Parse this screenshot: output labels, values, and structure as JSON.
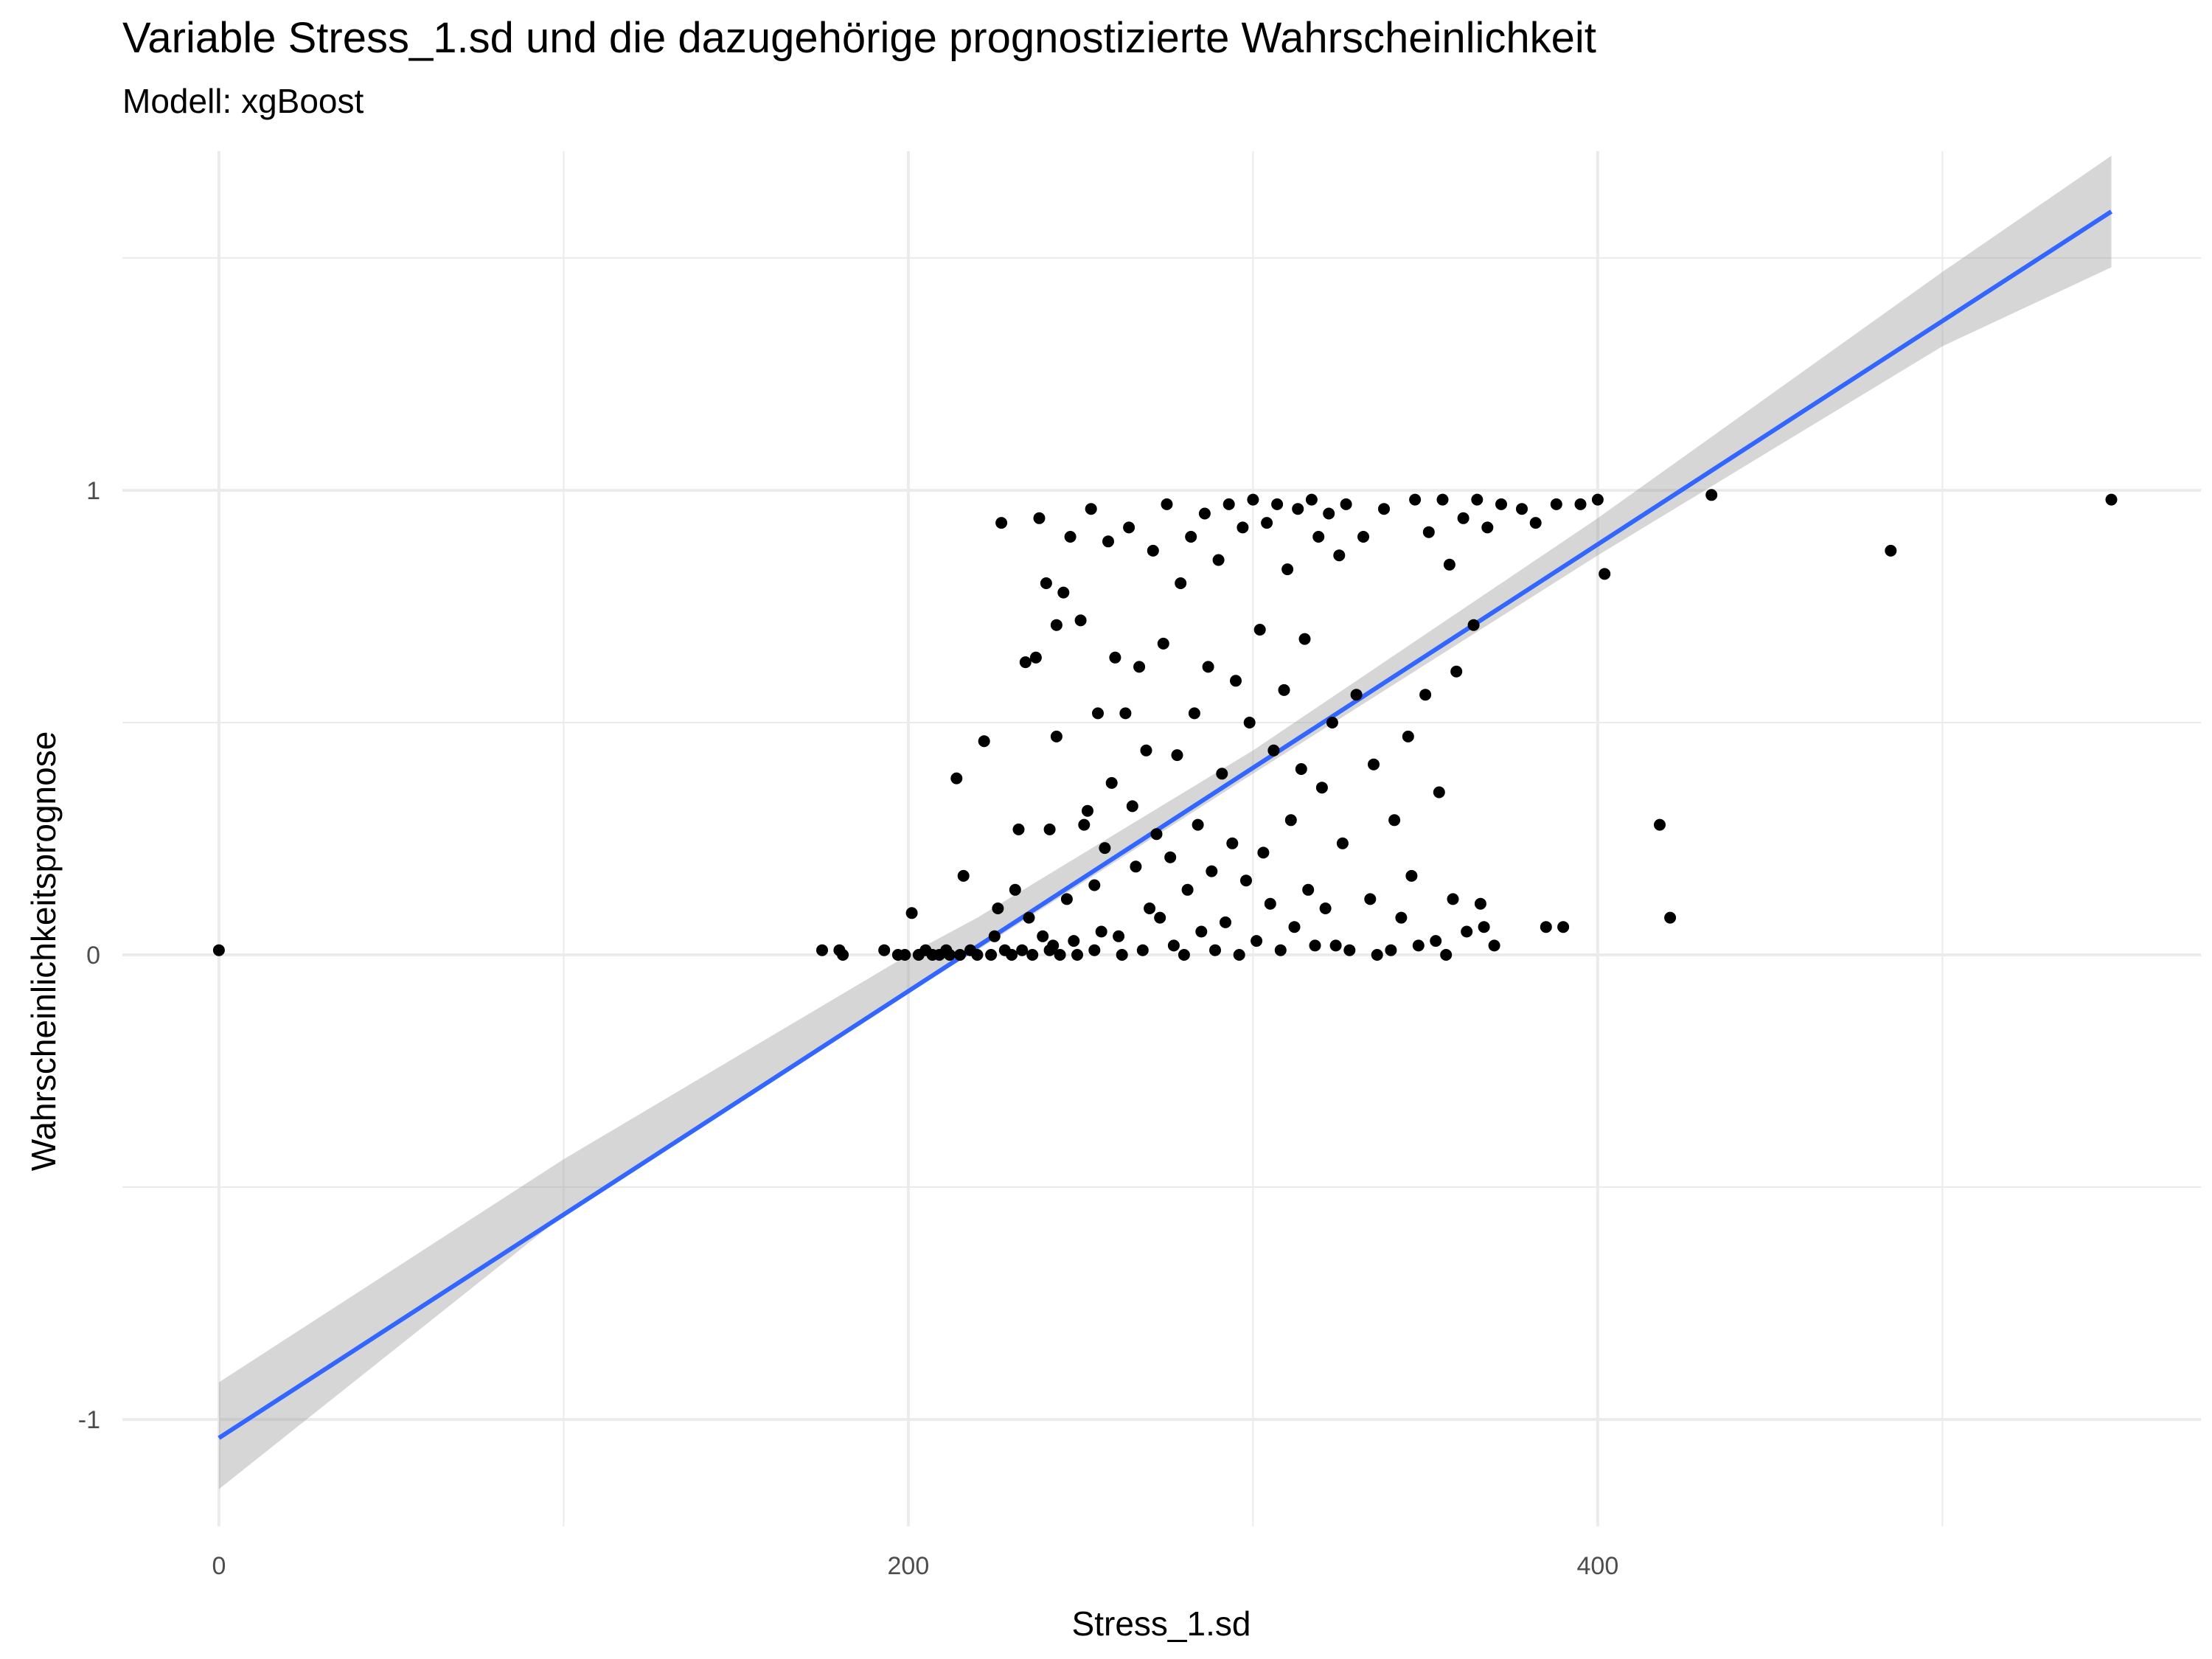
{
  "chart_data": {
    "type": "scatter",
    "title": "Variable Stress_1.sd und die dazugehörige prognostizierte Wahrscheinlichkeit",
    "subtitle": "Modell: xgBoost",
    "xlabel": "Stress_1.sd",
    "ylabel": "Wahrscheinlichkeitsprognose",
    "xlim": [
      -28,
      575
    ],
    "ylim": [
      -1.23,
      1.73
    ],
    "x_ticks": [
      0,
      200,
      400
    ],
    "y_ticks": [
      -1,
      0,
      1
    ],
    "x_tick_labels": [
      "0",
      "200",
      "400"
    ],
    "y_tick_labels": [
      "-1",
      "0",
      "1"
    ],
    "x_minor": [
      100,
      300,
      500
    ],
    "y_minor": [
      -0.5,
      0.5,
      1.5
    ],
    "grid": true,
    "colors": {
      "points": "#000000",
      "fit_line": "#3366FF",
      "ribbon": "#999999",
      "grid": "#ebebeb"
    },
    "fit_line": {
      "x": [
        0,
        549
      ],
      "y": [
        -1.04,
        1.6
      ]
    },
    "confidence_band": {
      "x": [
        0,
        100,
        200,
        220,
        300,
        400,
        500,
        549
      ],
      "lower": [
        -1.15,
        -0.56,
        -0.08,
        0.01,
        0.39,
        0.86,
        1.31,
        1.48
      ],
      "upper": [
        -0.92,
        -0.44,
        0.0,
        0.08,
        0.44,
        0.94,
        1.47,
        1.72
      ]
    },
    "points": [
      [
        0,
        0.01
      ],
      [
        175,
        0.01
      ],
      [
        180,
        0.01
      ],
      [
        181,
        0.0
      ],
      [
        193,
        0.01
      ],
      [
        197,
        0.0
      ],
      [
        199,
        0.0
      ],
      [
        201,
        0.09
      ],
      [
        203,
        0.0
      ],
      [
        205,
        0.01
      ],
      [
        207,
        0.0
      ],
      [
        209,
        0.0
      ],
      [
        211,
        0.01
      ],
      [
        212,
        0.0
      ],
      [
        214,
        0.38
      ],
      [
        215,
        0.0
      ],
      [
        216,
        0.17
      ],
      [
        218,
        0.01
      ],
      [
        220,
        0.0
      ],
      [
        222,
        0.46
      ],
      [
        224,
        0.0
      ],
      [
        225,
        0.04
      ],
      [
        226,
        0.1
      ],
      [
        227,
        0.93
      ],
      [
        228,
        0.01
      ],
      [
        230,
        0.0
      ],
      [
        231,
        0.14
      ],
      [
        232,
        0.27
      ],
      [
        233,
        0.01
      ],
      [
        234,
        0.63
      ],
      [
        235,
        0.08
      ],
      [
        236,
        0.0
      ],
      [
        237,
        0.64
      ],
      [
        238,
        0.94
      ],
      [
        239,
        0.04
      ],
      [
        240,
        0.8
      ],
      [
        241,
        0.27
      ],
      [
        241,
        0.01
      ],
      [
        242,
        0.02
      ],
      [
        243,
        0.47
      ],
      [
        243,
        0.71
      ],
      [
        244,
        0.0
      ],
      [
        245,
        0.78
      ],
      [
        246,
        0.12
      ],
      [
        247,
        0.9
      ],
      [
        248,
        0.03
      ],
      [
        249,
        0.0
      ],
      [
        250,
        0.72
      ],
      [
        251,
        0.28
      ],
      [
        252,
        0.31
      ],
      [
        253,
        0.96
      ],
      [
        254,
        0.15
      ],
      [
        254,
        0.01
      ],
      [
        255,
        0.52
      ],
      [
        256,
        0.05
      ],
      [
        257,
        0.23
      ],
      [
        258,
        0.89
      ],
      [
        259,
        0.37
      ],
      [
        260,
        0.64
      ],
      [
        261,
        0.04
      ],
      [
        262,
        0.0
      ],
      [
        263,
        0.52
      ],
      [
        264,
        0.92
      ],
      [
        265,
        0.32
      ],
      [
        266,
        0.19
      ],
      [
        267,
        0.62
      ],
      [
        268,
        0.01
      ],
      [
        269,
        0.44
      ],
      [
        270,
        0.1
      ],
      [
        271,
        0.87
      ],
      [
        272,
        0.26
      ],
      [
        273,
        0.08
      ],
      [
        274,
        0.67
      ],
      [
        275,
        0.97
      ],
      [
        276,
        0.21
      ],
      [
        277,
        0.02
      ],
      [
        278,
        0.43
      ],
      [
        279,
        0.8
      ],
      [
        280,
        0.0
      ],
      [
        281,
        0.14
      ],
      [
        282,
        0.9
      ],
      [
        283,
        0.52
      ],
      [
        284,
        0.28
      ],
      [
        285,
        0.05
      ],
      [
        286,
        0.95
      ],
      [
        287,
        0.62
      ],
      [
        288,
        0.18
      ],
      [
        289,
        0.01
      ],
      [
        290,
        0.85
      ],
      [
        291,
        0.39
      ],
      [
        292,
        0.07
      ],
      [
        293,
        0.97
      ],
      [
        294,
        0.24
      ],
      [
        295,
        0.59
      ],
      [
        296,
        0.0
      ],
      [
        297,
        0.92
      ],
      [
        298,
        0.16
      ],
      [
        299,
        0.5
      ],
      [
        300,
        0.98
      ],
      [
        301,
        0.03
      ],
      [
        302,
        0.7
      ],
      [
        303,
        0.22
      ],
      [
        304,
        0.93
      ],
      [
        305,
        0.11
      ],
      [
        306,
        0.44
      ],
      [
        307,
        0.97
      ],
      [
        308,
        0.01
      ],
      [
        309,
        0.57
      ],
      [
        310,
        0.83
      ],
      [
        311,
        0.29
      ],
      [
        312,
        0.06
      ],
      [
        313,
        0.96
      ],
      [
        314,
        0.4
      ],
      [
        315,
        0.68
      ],
      [
        316,
        0.14
      ],
      [
        317,
        0.98
      ],
      [
        318,
        0.02
      ],
      [
        319,
        0.9
      ],
      [
        320,
        0.36
      ],
      [
        321,
        0.1
      ],
      [
        322,
        0.95
      ],
      [
        323,
        0.5
      ],
      [
        324,
        0.02
      ],
      [
        325,
        0.86
      ],
      [
        326,
        0.24
      ],
      [
        327,
        0.97
      ],
      [
        328,
        0.01
      ],
      [
        330,
        0.56
      ],
      [
        332,
        0.9
      ],
      [
        334,
        0.12
      ],
      [
        335,
        0.41
      ],
      [
        336,
        0.0
      ],
      [
        338,
        0.96
      ],
      [
        340,
        0.01
      ],
      [
        341,
        0.29
      ],
      [
        343,
        0.08
      ],
      [
        345,
        0.47
      ],
      [
        346,
        0.17
      ],
      [
        347,
        0.98
      ],
      [
        348,
        0.02
      ],
      [
        350,
        0.56
      ],
      [
        351,
        0.91
      ],
      [
        353,
        0.03
      ],
      [
        354,
        0.35
      ],
      [
        355,
        0.98
      ],
      [
        356,
        0.0
      ],
      [
        357,
        0.84
      ],
      [
        358,
        0.12
      ],
      [
        359,
        0.61
      ],
      [
        361,
        0.94
      ],
      [
        362,
        0.05
      ],
      [
        364,
        0.71
      ],
      [
        365,
        0.98
      ],
      [
        366,
        0.11
      ],
      [
        367,
        0.06
      ],
      [
        368,
        0.92
      ],
      [
        370,
        0.02
      ],
      [
        372,
        0.97
      ],
      [
        378,
        0.96
      ],
      [
        382,
        0.93
      ],
      [
        385,
        0.06
      ],
      [
        388,
        0.97
      ],
      [
        390,
        0.06
      ],
      [
        395,
        0.97
      ],
      [
        400,
        0.98
      ],
      [
        402,
        0.82
      ],
      [
        418,
        0.28
      ],
      [
        421,
        0.08
      ],
      [
        433,
        0.99
      ],
      [
        485,
        0.87
      ],
      [
        549,
        0.98
      ]
    ]
  }
}
